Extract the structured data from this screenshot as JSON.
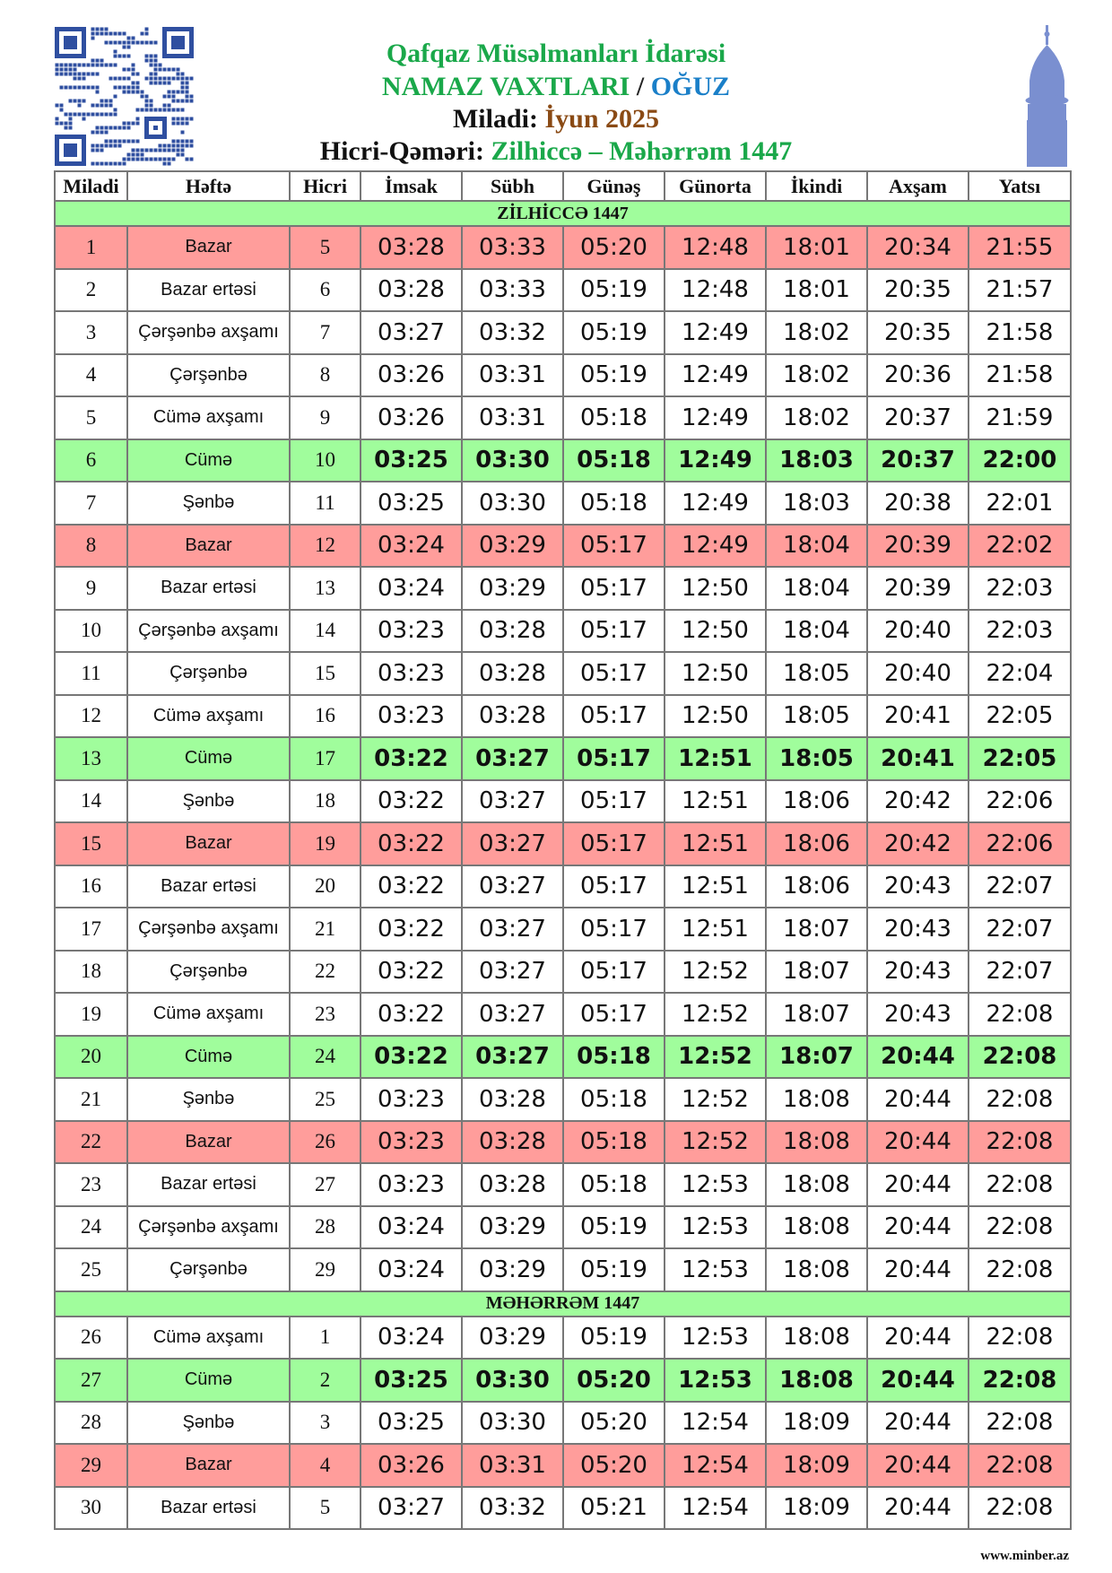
{
  "header": {
    "org": "Qafqaz Müsəlmanları İdarəsi",
    "doc_title": "NAMAZ VAXTLARI",
    "separator": "/",
    "city": "OĞUZ",
    "miladi_label": "Miladi:",
    "miladi_value": "İyun 2025",
    "hicri_label": "Hicri-Qəməri:",
    "hicri_value": "Zilhiccə – Məhərrəm 1447"
  },
  "colors": {
    "title_green": "#1aa84a",
    "city_blue": "#1a7fc8",
    "month_brown": "#8a4a14",
    "sunday_red": "#ff9d9b",
    "friday_green": "#a0fd9c"
  },
  "icons": [
    "qr-code",
    "minaret-icon"
  ],
  "columns": [
    "Miladi",
    "Həftə",
    "Hicri",
    "İmsak",
    "Sübh",
    "Günəş",
    "Günorta",
    "İkindi",
    "Axşam",
    "Yatsı"
  ],
  "sections": [
    "ZİLHİCCƏ 1447",
    "MƏHƏRRƏM 1447"
  ],
  "rows": [
    [
      "1",
      "Bazar",
      "5",
      "03:28",
      "03:33",
      "05:20",
      "12:48",
      "18:01",
      "20:34",
      "21:55"
    ],
    [
      "2",
      "Bazar ertəsi",
      "6",
      "03:28",
      "03:33",
      "05:19",
      "12:48",
      "18:01",
      "20:35",
      "21:57"
    ],
    [
      "3",
      "Çərşənbə axşamı",
      "7",
      "03:27",
      "03:32",
      "05:19",
      "12:49",
      "18:02",
      "20:35",
      "21:58"
    ],
    [
      "4",
      "Çərşənbə",
      "8",
      "03:26",
      "03:31",
      "05:19",
      "12:49",
      "18:02",
      "20:36",
      "21:58"
    ],
    [
      "5",
      "Cümə axşamı",
      "9",
      "03:26",
      "03:31",
      "05:18",
      "12:49",
      "18:02",
      "20:37",
      "21:59"
    ],
    [
      "6",
      "Cümə",
      "10",
      "03:25",
      "03:30",
      "05:18",
      "12:49",
      "18:03",
      "20:37",
      "22:00"
    ],
    [
      "7",
      "Şənbə",
      "11",
      "03:25",
      "03:30",
      "05:18",
      "12:49",
      "18:03",
      "20:38",
      "22:01"
    ],
    [
      "8",
      "Bazar",
      "12",
      "03:24",
      "03:29",
      "05:17",
      "12:49",
      "18:04",
      "20:39",
      "22:02"
    ],
    [
      "9",
      "Bazar ertəsi",
      "13",
      "03:24",
      "03:29",
      "05:17",
      "12:50",
      "18:04",
      "20:39",
      "22:03"
    ],
    [
      "10",
      "Çərşənbə axşamı",
      "14",
      "03:23",
      "03:28",
      "05:17",
      "12:50",
      "18:04",
      "20:40",
      "22:03"
    ],
    [
      "11",
      "Çərşənbə",
      "15",
      "03:23",
      "03:28",
      "05:17",
      "12:50",
      "18:05",
      "20:40",
      "22:04"
    ],
    [
      "12",
      "Cümə axşamı",
      "16",
      "03:23",
      "03:28",
      "05:17",
      "12:50",
      "18:05",
      "20:41",
      "22:05"
    ],
    [
      "13",
      "Cümə",
      "17",
      "03:22",
      "03:27",
      "05:17",
      "12:51",
      "18:05",
      "20:41",
      "22:05"
    ],
    [
      "14",
      "Şənbə",
      "18",
      "03:22",
      "03:27",
      "05:17",
      "12:51",
      "18:06",
      "20:42",
      "22:06"
    ],
    [
      "15",
      "Bazar",
      "19",
      "03:22",
      "03:27",
      "05:17",
      "12:51",
      "18:06",
      "20:42",
      "22:06"
    ],
    [
      "16",
      "Bazar ertəsi",
      "20",
      "03:22",
      "03:27",
      "05:17",
      "12:51",
      "18:06",
      "20:43",
      "22:07"
    ],
    [
      "17",
      "Çərşənbə axşamı",
      "21",
      "03:22",
      "03:27",
      "05:17",
      "12:51",
      "18:07",
      "20:43",
      "22:07"
    ],
    [
      "18",
      "Çərşənbə",
      "22",
      "03:22",
      "03:27",
      "05:17",
      "12:52",
      "18:07",
      "20:43",
      "22:07"
    ],
    [
      "19",
      "Cümə axşamı",
      "23",
      "03:22",
      "03:27",
      "05:17",
      "12:52",
      "18:07",
      "20:43",
      "22:08"
    ],
    [
      "20",
      "Cümə",
      "24",
      "03:22",
      "03:27",
      "05:18",
      "12:52",
      "18:07",
      "20:44",
      "22:08"
    ],
    [
      "21",
      "Şənbə",
      "25",
      "03:23",
      "03:28",
      "05:18",
      "12:52",
      "18:08",
      "20:44",
      "22:08"
    ],
    [
      "22",
      "Bazar",
      "26",
      "03:23",
      "03:28",
      "05:18",
      "12:52",
      "18:08",
      "20:44",
      "22:08"
    ],
    [
      "23",
      "Bazar ertəsi",
      "27",
      "03:23",
      "03:28",
      "05:18",
      "12:53",
      "18:08",
      "20:44",
      "22:08"
    ],
    [
      "24",
      "Çərşənbə axşamı",
      "28",
      "03:24",
      "03:29",
      "05:19",
      "12:53",
      "18:08",
      "20:44",
      "22:08"
    ],
    [
      "25",
      "Çərşənbə",
      "29",
      "03:24",
      "03:29",
      "05:19",
      "12:53",
      "18:08",
      "20:44",
      "22:08"
    ],
    [
      "26",
      "Cümə axşamı",
      "1",
      "03:24",
      "03:29",
      "05:19",
      "12:53",
      "18:08",
      "20:44",
      "22:08"
    ],
    [
      "27",
      "Cümə",
      "2",
      "03:25",
      "03:30",
      "05:20",
      "12:53",
      "18:08",
      "20:44",
      "22:08"
    ],
    [
      "28",
      "Şənbə",
      "3",
      "03:25",
      "03:30",
      "05:20",
      "12:54",
      "18:09",
      "20:44",
      "22:08"
    ],
    [
      "29",
      "Bazar",
      "4",
      "03:26",
      "03:31",
      "05:20",
      "12:54",
      "18:09",
      "20:44",
      "22:08"
    ],
    [
      "30",
      "Bazar ertəsi",
      "5",
      "03:27",
      "03:32",
      "05:21",
      "12:54",
      "18:09",
      "20:44",
      "22:08"
    ]
  ],
  "footer": {
    "site": "www.minber.az"
  }
}
